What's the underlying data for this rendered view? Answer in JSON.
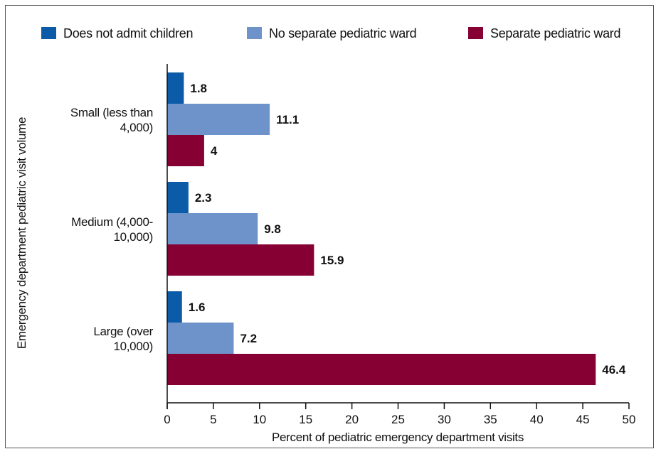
{
  "chart_data": {
    "type": "bar",
    "orientation": "horizontal",
    "categories": [
      "Small (less than 4,000)",
      "Medium (4,000-10,000)",
      "Large (over 10,000)"
    ],
    "category_label_lines": [
      [
        "Small (less than",
        "4,000)"
      ],
      [
        "Medium (4,000-",
        "10,000)"
      ],
      [
        "Large (over",
        "10,000)"
      ]
    ],
    "series": [
      {
        "name": "Does not admit children",
        "color": "#0b5ba8",
        "values": [
          1.8,
          2.3,
          1.6
        ]
      },
      {
        "name": "No separate pediatric ward",
        "color": "#6e93cb",
        "values": [
          11.1,
          9.8,
          7.2
        ]
      },
      {
        "name": "Separate pediatric ward",
        "color": "#870033",
        "values": [
          4.0,
          15.9,
          46.4
        ]
      }
    ],
    "data_labels": true,
    "xlabel": "Percent of pediatric emergency department visits",
    "ylabel": "Emergency department pediatric visit volume",
    "xlim": [
      0,
      50
    ],
    "xticks": [
      0,
      5,
      10,
      15,
      20,
      25,
      30,
      35,
      40,
      45,
      50
    ],
    "grid": false,
    "legend_position": "top"
  }
}
